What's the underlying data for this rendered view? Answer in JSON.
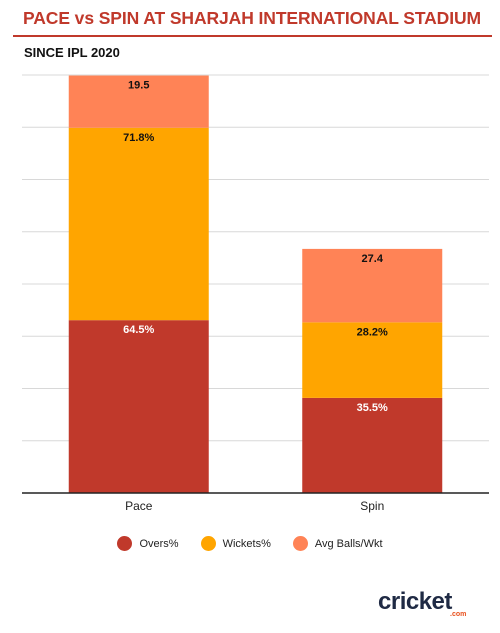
{
  "header": {
    "title": "PACE vs SPIN AT SHARJAH INTERNATIONAL STADIUM",
    "subtitle": "SINCE IPL 2020"
  },
  "colors": {
    "title": "#c0392b",
    "overs": "#c0392b",
    "wickets": "#ffa500",
    "avg_balls": "#ff8356"
  },
  "chart_data": {
    "type": "bar",
    "stacked": true,
    "categories": [
      "Pace",
      "Spin"
    ],
    "series": [
      {
        "name": "Overs%",
        "values": [
          64.5,
          35.5
        ],
        "labels": [
          "64.5%",
          "35.5%"
        ],
        "color": "#c0392b"
      },
      {
        "name": "Wickets%",
        "values": [
          71.8,
          28.2
        ],
        "labels": [
          "71.8%",
          "28.2%"
        ],
        "color": "#ffa500"
      },
      {
        "name": "Avg Balls/Wkt",
        "values": [
          19.5,
          27.4
        ],
        "labels": [
          "19.5",
          "27.4"
        ],
        "color": "#ff8356"
      }
    ],
    "ylim": [
      0,
      156
    ],
    "grid": true,
    "legend_position": "bottom-center",
    "xlabel": "",
    "ylabel": ""
  },
  "logo": {
    "text": "cricket",
    "suffix": ".com"
  }
}
